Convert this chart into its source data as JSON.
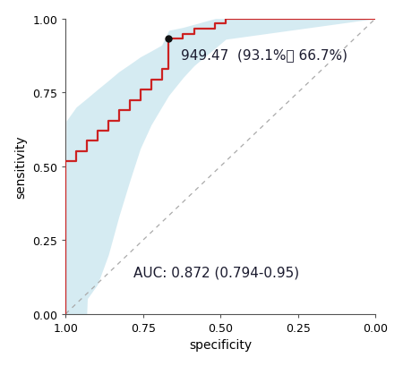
{
  "title": "",
  "xlabel": "specificity",
  "ylabel": "sensitivity",
  "xlim": [
    1.0,
    0.0
  ],
  "ylim": [
    0.0,
    1.0
  ],
  "xticks": [
    1.0,
    0.75,
    0.5,
    0.25,
    0.0
  ],
  "yticks": [
    0.0,
    0.25,
    0.5,
    0.75,
    1.0
  ],
  "roc_color": "#cc2222",
  "ci_color": "#add8e6",
  "ci_alpha": 0.5,
  "diag_color": "#aaaaaa",
  "point_color": "#111111",
  "bg_color": "#ffffff",
  "optimal_specificity": 0.667,
  "optimal_sensitivity": 0.931,
  "optimal_label": "949.47  (93.1%， 66.7%)",
  "auc_text": "AUC: 0.872 (0.794-0.95)",
  "font_size_label": 10,
  "font_size_tick": 9,
  "font_size_annot": 11,
  "font_size_auc": 11
}
